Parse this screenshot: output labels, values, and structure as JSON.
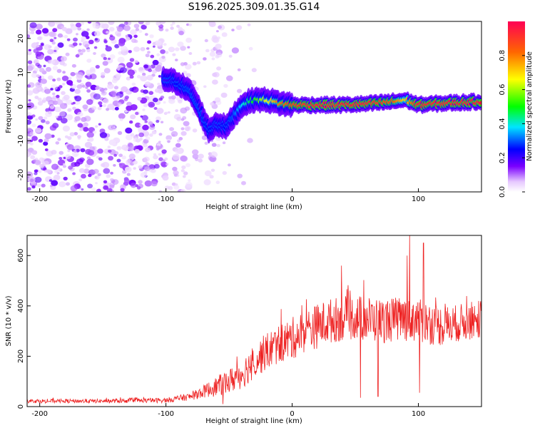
{
  "title": "S196.2025.309.01.35.G14",
  "chart_data": [
    {
      "type": "heatmap",
      "xlabel": "Height of straight line (km)",
      "ylabel": "Frequency (Hz)",
      "xlim": [
        -210,
        150
      ],
      "ylim": [
        -25,
        25
      ],
      "x_ticks": [
        -200,
        -100,
        0,
        100
      ],
      "y_ticks": [
        -20,
        -10,
        0,
        10,
        20
      ],
      "colorbar": {
        "label": "Normalized spectral amplitude",
        "range": [
          0,
          1
        ],
        "ticks": [
          0.0,
          0.2,
          0.4,
          0.6,
          0.8
        ],
        "tick_labels": [
          "0.0",
          "0.2",
          "0.4",
          "0.6",
          "0.8"
        ],
        "colors": [
          "#ffffff",
          "#e6c8ff",
          "#7a00ff",
          "#0000ff",
          "#00e5ff",
          "#00ff00",
          "#ffff00",
          "#ff6600",
          "#ff0055"
        ]
      },
      "ridge": {
        "description_points_x": [
          -100,
          -90,
          -80,
          -72,
          -66,
          -60,
          -52,
          -45,
          -38,
          -30,
          -20,
          -10,
          0,
          20,
          40,
          60,
          80,
          90,
          100,
          120,
          150
        ],
        "description_points_y": [
          8,
          7,
          4,
          -2,
          -7,
          -5,
          -6,
          -2,
          1,
          2,
          2,
          1,
          0.5,
          0.5,
          0.5,
          0.8,
          1.5,
          2,
          0.5,
          1,
          1.5
        ],
        "strength": [
          0.2,
          0.25,
          0.28,
          0.28,
          0.25,
          0.22,
          0.25,
          0.3,
          0.4,
          0.5,
          0.65,
          0.8,
          0.9,
          0.95,
          0.95,
          0.95,
          0.85,
          0.7,
          0.95,
          0.95,
          0.95
        ]
      }
    },
    {
      "type": "line",
      "xlabel": "Height of straight line (km)",
      "ylabel": "SNR (10 * v/v)",
      "xlim": [
        -210,
        150
      ],
      "ylim": [
        0,
        680
      ],
      "x_ticks": [
        -200,
        -100,
        0,
        100
      ],
      "y_ticks": [
        0,
        200,
        400,
        600
      ],
      "series_color": "#ee2222",
      "baseline_x": [
        -210,
        -150,
        -100,
        -80,
        -70,
        -60,
        -50,
        -40,
        -30,
        -20,
        -10,
        0,
        10,
        20,
        30,
        40,
        50,
        60,
        70,
        80,
        90,
        100,
        110,
        120,
        130,
        140,
        150
      ],
      "baseline_y": [
        22,
        22,
        25,
        40,
        60,
        80,
        100,
        130,
        180,
        220,
        250,
        270,
        300,
        320,
        340,
        350,
        355,
        350,
        340,
        345,
        350,
        345,
        330,
        320,
        330,
        340,
        350
      ],
      "noise_y": [
        8,
        8,
        10,
        15,
        25,
        40,
        50,
        60,
        70,
        75,
        80,
        85,
        85,
        90,
        90,
        90,
        90,
        90,
        90,
        90,
        90,
        90,
        85,
        80,
        75,
        75,
        75
      ],
      "spikes": [
        {
          "x": 93,
          "y": 680
        },
        {
          "x": 104,
          "y": 650
        },
        {
          "x": 91,
          "y": 600
        },
        {
          "x": 39,
          "y": 560
        },
        {
          "x": 54,
          "y": 35
        },
        {
          "x": 68,
          "y": 40
        },
        {
          "x": 101,
          "y": 55
        },
        {
          "x": -55,
          "y": 10
        }
      ]
    }
  ]
}
